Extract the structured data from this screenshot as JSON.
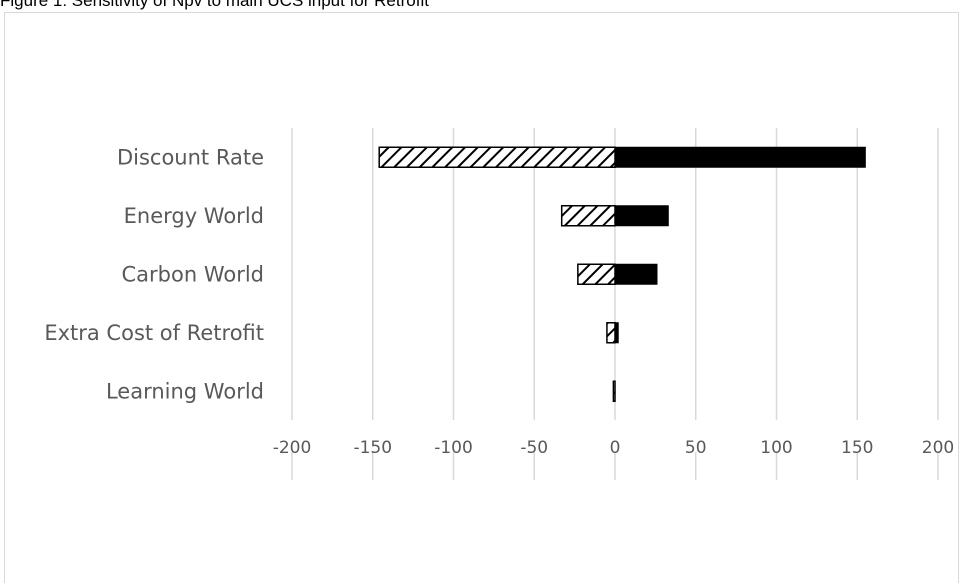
{
  "figure": {
    "caption": "Figure 1: Sensitivity of Npv to main UCS input for Retrofit"
  },
  "chart_data": {
    "type": "bar",
    "orientation": "horizontal",
    "title": "",
    "xlabel": "",
    "ylabel": "",
    "categories": [
      "Discount Rate",
      "Energy World",
      "Carbon World",
      "Extra Cost of Retrofit",
      "Learning World"
    ],
    "series": [
      {
        "fill": "hatched",
        "values": [
          -146,
          -33,
          -23,
          -5,
          -1
        ]
      },
      {
        "fill": "solid",
        "values": [
          155,
          33,
          26,
          2,
          0
        ]
      }
    ],
    "xlim": [
      -200,
      200
    ],
    "xticks": [
      "-200",
      "-150",
      "-100",
      "-50",
      "0",
      "50",
      "100",
      "150",
      "200"
    ],
    "grid": true,
    "legend": "none",
    "colors": {
      "solid": "#000000",
      "hatch": "#000000",
      "grid": "#d9d9d9",
      "text": "#595959"
    }
  }
}
